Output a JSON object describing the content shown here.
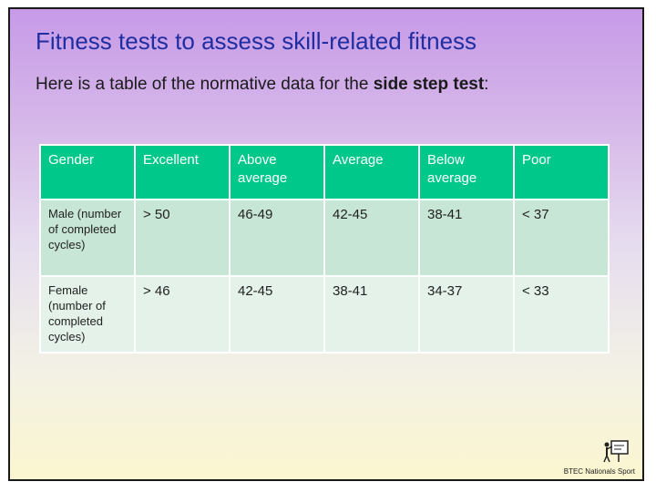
{
  "title": "Fitness tests to assess skill-related fitness",
  "subtitle": {
    "prefix": "Here is a table of the normative data for the ",
    "bold": "side step test",
    "suffix": ":"
  },
  "table": {
    "headers": [
      "Gender",
      "Excellent",
      "Above average",
      "Average",
      "Below average",
      "Poor"
    ],
    "rows": [
      {
        "gender": "Male (number of completed cycles)",
        "values": [
          "> 50",
          "46-49",
          "42-45",
          "38-41",
          "< 37"
        ]
      },
      {
        "gender": "Female (number of completed cycles)",
        "values": [
          "> 46",
          "42-45",
          "38-41",
          "34-37",
          "< 33"
        ]
      }
    ]
  },
  "logo": {
    "text": "BTEC Nationals Sport",
    "icon": "teacher-at-board-icon"
  },
  "colors": {
    "title": "#1f2ea0",
    "header_bg": "#00c88a",
    "row1_bg": "#c7e6d6",
    "row2_bg": "#e4f2ea"
  }
}
